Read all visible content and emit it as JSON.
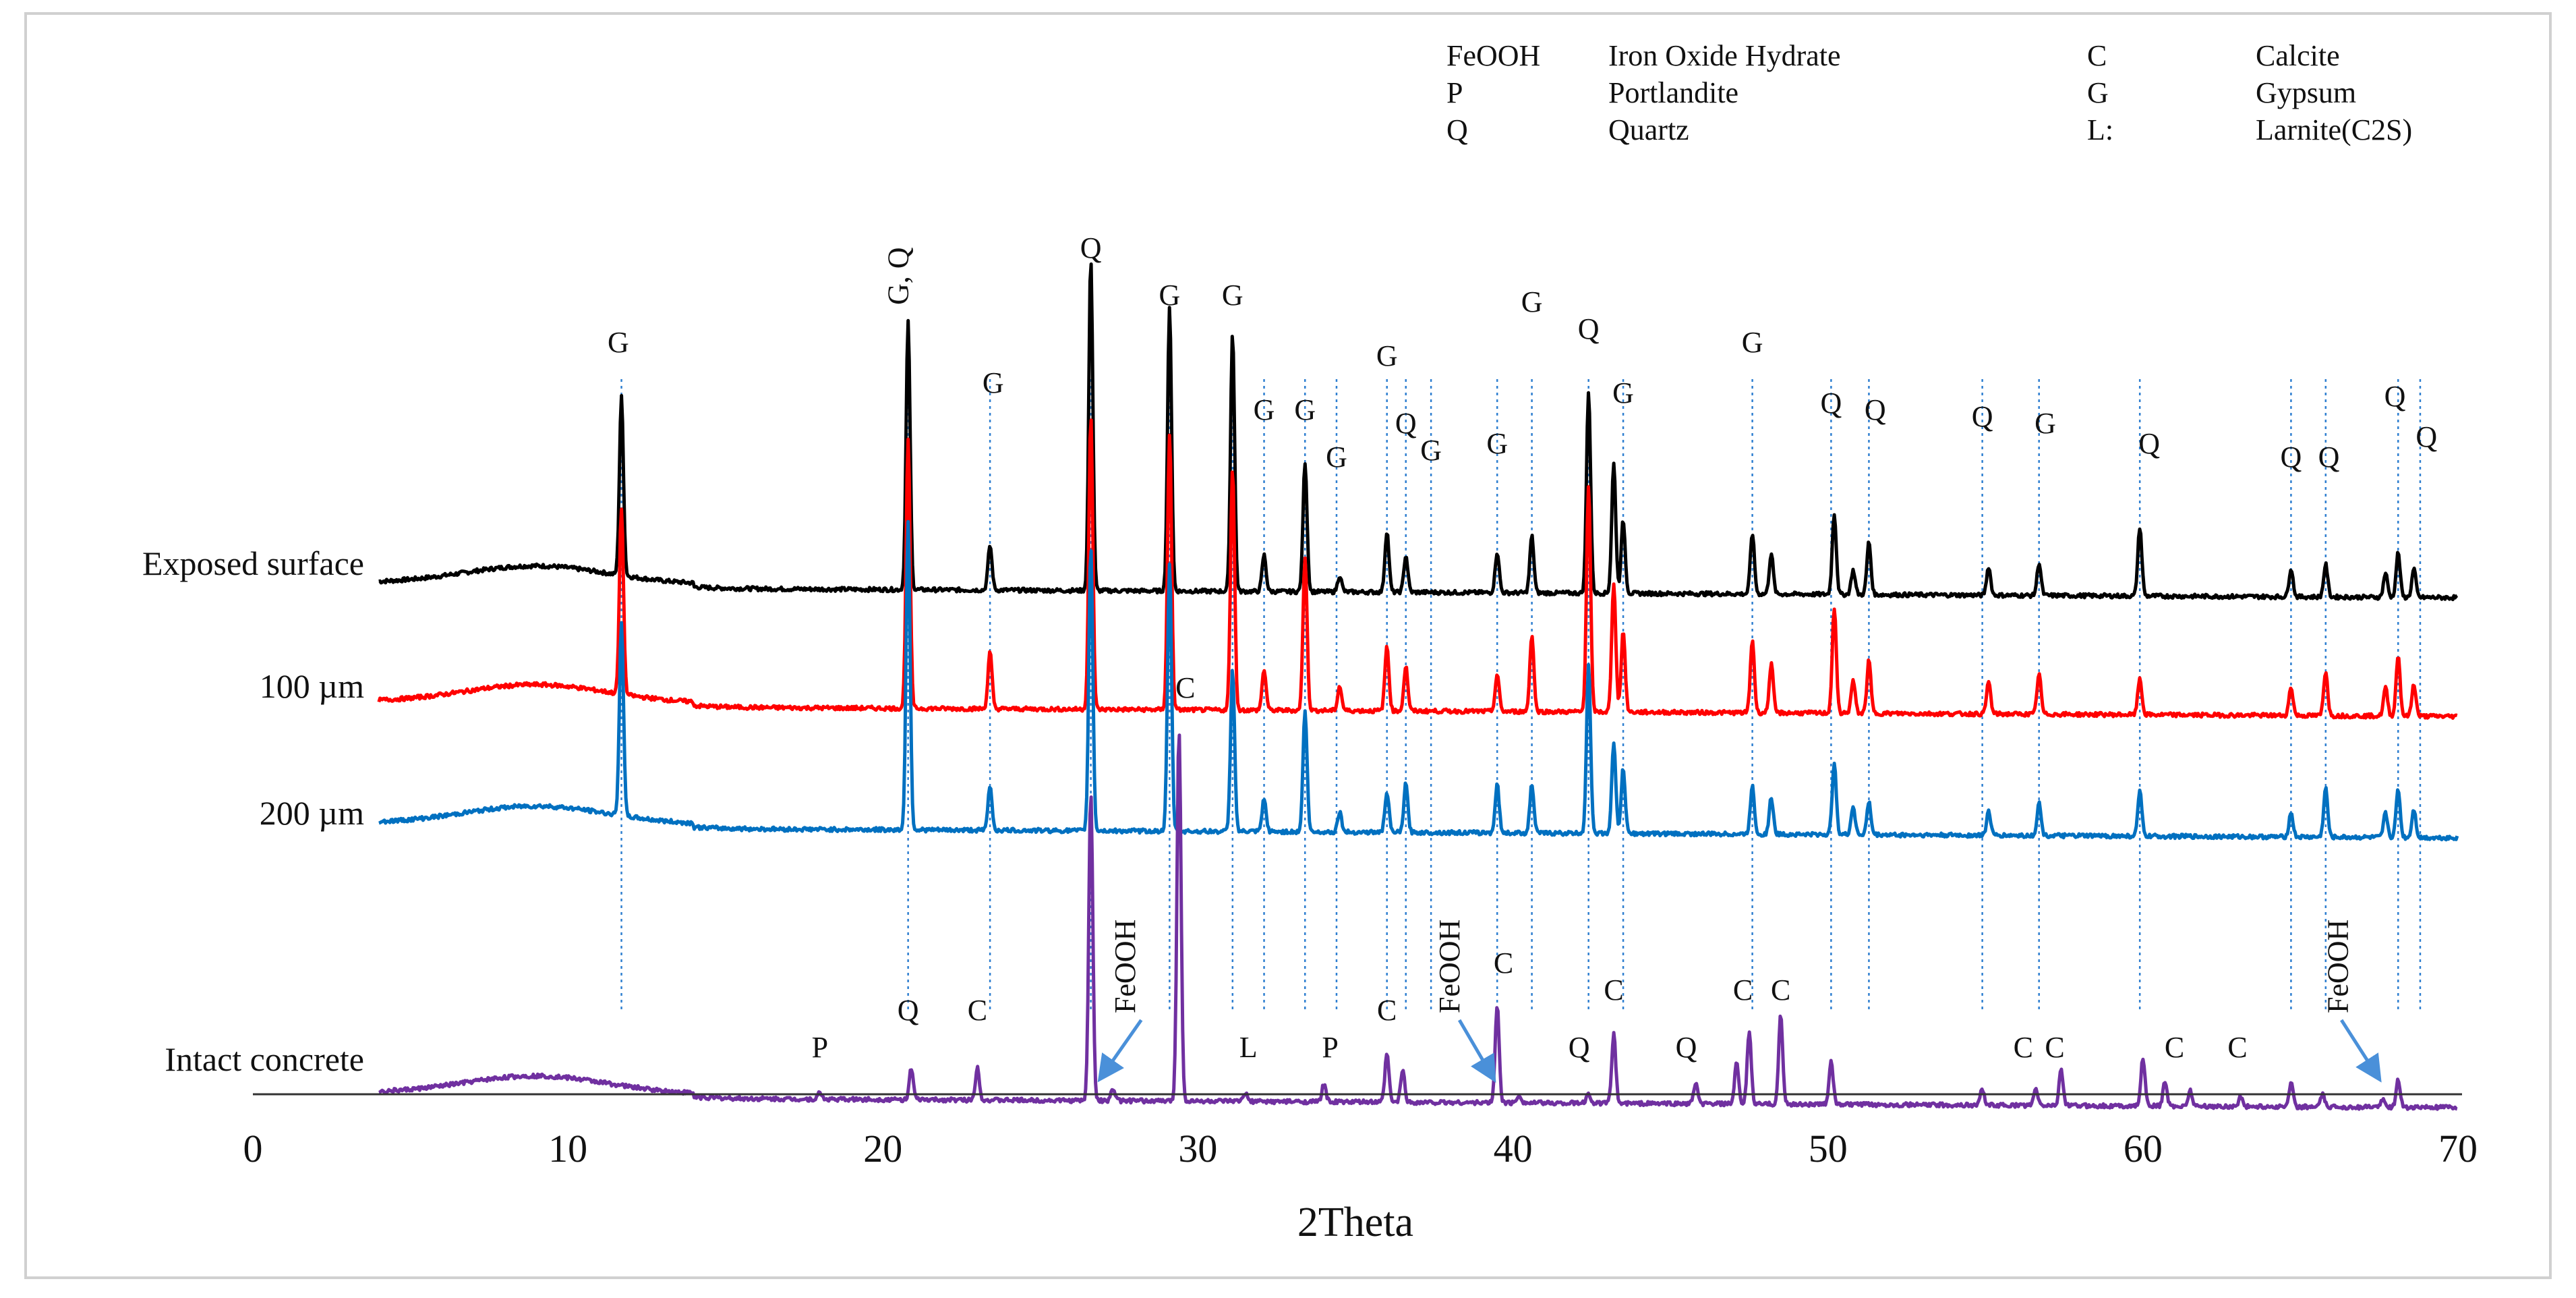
{
  "chart_data": {
    "type": "line",
    "title": "",
    "xlabel": "2Theta",
    "ylabel": "",
    "xlim": [
      0,
      70
    ],
    "xticks": [
      0,
      10,
      20,
      30,
      40,
      50,
      60,
      70
    ],
    "grid": false,
    "legend_position": "top-right",
    "legend": [
      {
        "code": "FeOOH",
        "name": "Iron Oxide Hydrate"
      },
      {
        "code": "P",
        "name": "Portlandite"
      },
      {
        "code": "Q",
        "name": "Quartz"
      },
      {
        "code": "C",
        "name": "Calcite"
      },
      {
        "code": "G",
        "name": "Gypsum"
      },
      {
        "code": "L:",
        "name": "Larnite(C2S)"
      }
    ],
    "series": [
      {
        "name": "Exposed surface",
        "color": "#000000",
        "baseline": 1.0,
        "slope": 0.05,
        "hump": 0.06,
        "peaks": [
          [
            11.7,
            2.2
          ],
          [
            20.8,
            3.3
          ],
          [
            23.4,
            0.55
          ],
          [
            26.6,
            4.1
          ],
          [
            29.1,
            3.5
          ],
          [
            31.1,
            3.2
          ],
          [
            32.1,
            0.45
          ],
          [
            33.4,
            1.6
          ],
          [
            34.5,
            0.2
          ],
          [
            36.0,
            0.75
          ],
          [
            36.6,
            0.45
          ],
          [
            39.5,
            0.5
          ],
          [
            40.6,
            0.7
          ],
          [
            42.4,
            2.5
          ],
          [
            43.2,
            1.6
          ],
          [
            43.5,
            0.9
          ],
          [
            47.6,
            0.75
          ],
          [
            48.2,
            0.5
          ],
          [
            50.2,
            1.0
          ],
          [
            50.8,
            0.3
          ],
          [
            51.3,
            0.65
          ],
          [
            55.1,
            0.35
          ],
          [
            56.7,
            0.4
          ],
          [
            59.9,
            0.85
          ],
          [
            64.7,
            0.35
          ],
          [
            65.8,
            0.4
          ],
          [
            67.7,
            0.3
          ],
          [
            68.1,
            0.55
          ],
          [
            68.6,
            0.35
          ]
        ]
      },
      {
        "name": "100 µm",
        "color": "#ff0000",
        "baseline": 1.0,
        "slope": 0.05,
        "hump": 0.06,
        "peaks": [
          [
            11.7,
            2.3
          ],
          [
            20.8,
            3.3
          ],
          [
            23.4,
            0.7
          ],
          [
            26.6,
            3.6
          ],
          [
            29.1,
            3.4
          ],
          [
            31.1,
            3.0
          ],
          [
            32.1,
            0.5
          ],
          [
            33.4,
            1.9
          ],
          [
            34.5,
            0.3
          ],
          [
            36.0,
            0.8
          ],
          [
            36.6,
            0.55
          ],
          [
            39.5,
            0.45
          ],
          [
            40.6,
            0.95
          ],
          [
            42.4,
            2.8
          ],
          [
            43.2,
            1.6
          ],
          [
            43.5,
            1.0
          ],
          [
            47.6,
            0.9
          ],
          [
            48.2,
            0.6
          ],
          [
            50.2,
            1.3
          ],
          [
            50.8,
            0.4
          ],
          [
            51.3,
            0.65
          ],
          [
            55.1,
            0.4
          ],
          [
            56.7,
            0.5
          ],
          [
            59.9,
            0.45
          ],
          [
            64.7,
            0.35
          ],
          [
            65.8,
            0.55
          ],
          [
            67.7,
            0.35
          ],
          [
            68.1,
            0.75
          ],
          [
            68.6,
            0.4
          ]
        ]
      },
      {
        "name": "200 µm",
        "color": "#0070c0",
        "baseline": 1.0,
        "slope": 0.05,
        "hump": 0.06,
        "peaks": [
          [
            11.7,
            2.4
          ],
          [
            20.8,
            3.8
          ],
          [
            23.4,
            0.55
          ],
          [
            26.6,
            3.5
          ],
          [
            29.1,
            3.3
          ],
          [
            31.1,
            2.0
          ],
          [
            32.1,
            0.4
          ],
          [
            33.4,
            1.5
          ],
          [
            34.5,
            0.25
          ],
          [
            36.0,
            0.5
          ],
          [
            36.6,
            0.6
          ],
          [
            39.5,
            0.6
          ],
          [
            40.6,
            0.6
          ],
          [
            42.4,
            2.1
          ],
          [
            43.2,
            1.1
          ],
          [
            43.5,
            0.8
          ],
          [
            47.6,
            0.6
          ],
          [
            48.2,
            0.45
          ],
          [
            50.2,
            0.9
          ],
          [
            50.8,
            0.35
          ],
          [
            51.3,
            0.4
          ],
          [
            55.1,
            0.3
          ],
          [
            56.7,
            0.4
          ],
          [
            59.9,
            0.55
          ],
          [
            64.7,
            0.3
          ],
          [
            65.8,
            0.6
          ],
          [
            67.7,
            0.3
          ],
          [
            68.1,
            0.6
          ],
          [
            68.6,
            0.35
          ]
        ]
      },
      {
        "name": "Intact concrete",
        "color": "#7030a0",
        "baseline": 1.0,
        "slope": 0.05,
        "hump": 0.06,
        "peaks": [
          [
            18.0,
            0.08
          ],
          [
            20.9,
            0.38
          ],
          [
            23.0,
            0.4
          ],
          [
            26.6,
            3.8
          ],
          [
            27.3,
            0.15
          ],
          [
            29.4,
            4.6
          ],
          [
            31.5,
            0.1
          ],
          [
            34.0,
            0.22
          ],
          [
            36.0,
            0.6
          ],
          [
            36.5,
            0.4
          ],
          [
            39.5,
            1.2
          ],
          [
            40.2,
            0.1
          ],
          [
            42.4,
            0.12
          ],
          [
            43.2,
            0.85
          ],
          [
            45.8,
            0.25
          ],
          [
            47.1,
            0.5
          ],
          [
            47.5,
            0.9
          ],
          [
            48.5,
            1.1
          ],
          [
            50.1,
            0.55
          ],
          [
            54.9,
            0.2
          ],
          [
            56.6,
            0.2
          ],
          [
            57.4,
            0.45
          ],
          [
            60.0,
            0.6
          ],
          [
            60.7,
            0.3
          ],
          [
            61.5,
            0.2
          ],
          [
            63.1,
            0.12
          ],
          [
            64.7,
            0.3
          ],
          [
            65.7,
            0.15
          ],
          [
            67.6,
            0.1
          ],
          [
            68.1,
            0.35
          ]
        ]
      }
    ],
    "peak_labels": [
      {
        "text": "G",
        "x": 11.6,
        "level": 0
      },
      {
        "text": "G, Q",
        "x": 20.8,
        "level": 0,
        "vertical": true
      },
      {
        "text": "G",
        "x": 23.5,
        "level": 0
      },
      {
        "text": "Q",
        "x": 26.6,
        "level": 0
      },
      {
        "text": "G",
        "x": 29.1,
        "level": 0
      },
      {
        "text": "G",
        "x": 31.1,
        "level": 0
      },
      {
        "text": "G",
        "x": 32.1,
        "level": 0
      },
      {
        "text": "G",
        "x": 33.4,
        "level": 0
      },
      {
        "text": "G",
        "x": 34.4,
        "level": 0
      },
      {
        "text": "G",
        "x": 36.0,
        "level": 0
      },
      {
        "text": "Q",
        "x": 36.6,
        "level": 0
      },
      {
        "text": "G",
        "x": 37.4,
        "level": 0
      },
      {
        "text": "G",
        "x": 39.5,
        "level": 0
      },
      {
        "text": "G",
        "x": 40.6,
        "level": 0
      },
      {
        "text": "Q",
        "x": 42.4,
        "level": 0
      },
      {
        "text": "G",
        "x": 43.5,
        "level": 0
      },
      {
        "text": "G",
        "x": 47.6,
        "level": 0
      },
      {
        "text": "Q",
        "x": 50.1,
        "level": 0
      },
      {
        "text": "Q",
        "x": 51.5,
        "level": 0
      },
      {
        "text": "Q",
        "x": 54.9,
        "level": 0
      },
      {
        "text": "G",
        "x": 56.9,
        "level": 0
      },
      {
        "text": "Q",
        "x": 60.2,
        "level": 0
      },
      {
        "text": "Q",
        "x": 64.7,
        "level": 0
      },
      {
        "text": "Q",
        "x": 65.9,
        "level": 0
      },
      {
        "text": "Q",
        "x": 68.0,
        "level": 0
      },
      {
        "text": "Q",
        "x": 69.0,
        "level": 0
      },
      {
        "text": "C",
        "x": 29.6,
        "level": 3
      },
      {
        "text": "P",
        "x": 18.0,
        "level": 3
      },
      {
        "text": "Q",
        "x": 20.8,
        "level": 3
      },
      {
        "text": "C",
        "x": 23.0,
        "level": 3
      },
      {
        "text": "FeOOH",
        "x": 28.0,
        "level": 3,
        "vertical": true
      },
      {
        "text": "L",
        "x": 31.6,
        "level": 3
      },
      {
        "text": "P",
        "x": 34.2,
        "level": 3
      },
      {
        "text": "C",
        "x": 36.0,
        "level": 3
      },
      {
        "text": "FeOOH",
        "x": 38.3,
        "level": 3,
        "vertical": true
      },
      {
        "text": "C",
        "x": 39.7,
        "level": 3
      },
      {
        "text": "Q",
        "x": 42.1,
        "level": 3
      },
      {
        "text": "C",
        "x": 43.2,
        "level": 3
      },
      {
        "text": "Q",
        "x": 45.5,
        "level": 3
      },
      {
        "text": "C",
        "x": 47.3,
        "level": 3
      },
      {
        "text": "C",
        "x": 48.5,
        "level": 3
      },
      {
        "text": "C",
        "x": 56.2,
        "level": 3
      },
      {
        "text": "C",
        "x": 57.2,
        "level": 3
      },
      {
        "text": "C",
        "x": 61.0,
        "level": 3
      },
      {
        "text": "C",
        "x": 63.0,
        "level": 3
      },
      {
        "text": "FeOOH",
        "x": 66.5,
        "level": 3,
        "vertical": true
      }
    ],
    "arrows": [
      {
        "from": 28.2,
        "to": 27.0
      },
      {
        "from": 38.3,
        "to": 39.3
      },
      {
        "from": 66.3,
        "to": 67.4
      }
    ],
    "reference_lines": [
      11.7,
      20.8,
      23.4,
      26.6,
      29.1,
      31.1,
      32.1,
      33.4,
      34.4,
      36.0,
      36.6,
      37.4,
      39.5,
      40.6,
      42.4,
      43.5,
      47.6,
      50.1,
      51.3,
      54.9,
      56.7,
      59.9,
      64.7,
      65.8,
      68.1,
      68.8
    ]
  }
}
